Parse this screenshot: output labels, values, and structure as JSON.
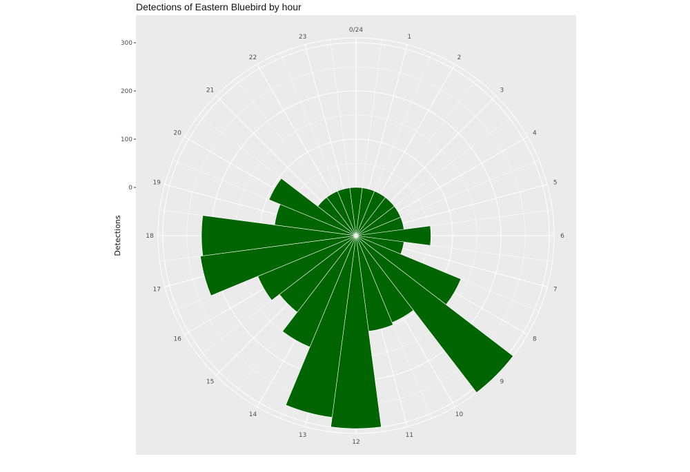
{
  "chart_data": {
    "type": "bar",
    "coord": "polar",
    "title": "Detections of Eastern Bluebird by hour",
    "xlabel": "",
    "ylabel": "Detections",
    "categories": [
      "0",
      "1",
      "2",
      "3",
      "4",
      "5",
      "6",
      "7",
      "8",
      "9",
      "10",
      "11",
      "12",
      "13",
      "14",
      "15",
      "16",
      "17",
      "18",
      "19",
      "20",
      "21",
      "22",
      "23"
    ],
    "values": [
      0,
      0,
      0,
      0,
      0,
      0,
      55,
      0,
      135,
      310,
      95,
      100,
      300,
      280,
      150,
      100,
      120,
      225,
      220,
      70,
      95,
      0,
      0,
      0
    ],
    "angle_tick_labels": [
      "0/24",
      "1",
      "2",
      "3",
      "4",
      "5",
      "6",
      "7",
      "8",
      "9",
      "10",
      "11",
      "12",
      "13",
      "14",
      "15",
      "16",
      "17",
      "18",
      "19",
      "20",
      "21",
      "22",
      "23"
    ],
    "radial_ticks": [
      0,
      100,
      200,
      300
    ],
    "radial_tick_labels": [
      "0",
      "100",
      "200",
      "300"
    ],
    "ylim": [
      -100,
      310
    ],
    "grid": true,
    "legend": "none",
    "bar_color": "#006400",
    "panel_color": "#ebebeb",
    "grid_color": "#ffffff"
  }
}
